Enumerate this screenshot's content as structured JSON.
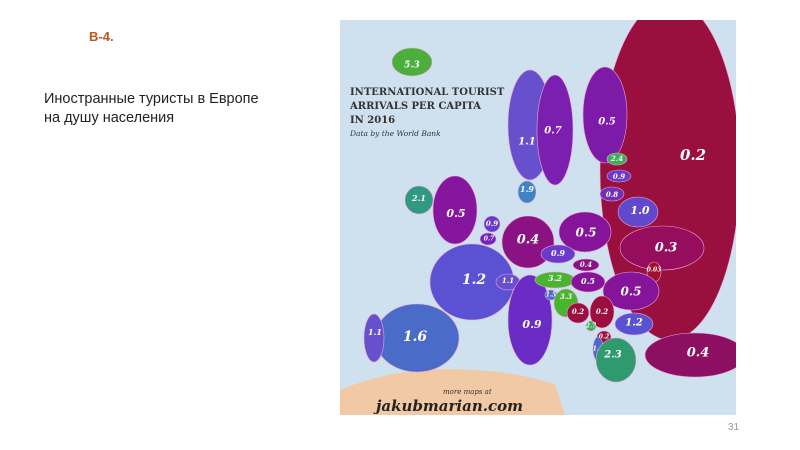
{
  "slide": {
    "code": "В-4.",
    "caption_line1": "Иностранные туристы в Европе",
    "caption_line2": "на душу населения",
    "page_number": "31"
  },
  "map": {
    "title_line1": "INTERNATIONAL TOURIST",
    "title_line2": "ARRIVALS PER CAPITA",
    "title_line3": "IN 2016",
    "source": "Data by the World Bank",
    "credit_small": "more maps at",
    "credit_site": "jakubmarian.com",
    "colors": {
      "sea": "#cfe0ee",
      "africa": "#f1c9a4"
    },
    "countries": [
      {
        "name": "Russia",
        "value": "0.2",
        "color": "#990f3d"
      },
      {
        "name": "Turkey",
        "value": "0.4",
        "color": "#8c0f62"
      },
      {
        "name": "Ukraine",
        "value": "0.3",
        "color": "#950d5c"
      },
      {
        "name": "Iceland",
        "value": "5.3",
        "color": "#4caf3c"
      },
      {
        "name": "Norway",
        "value": "1.1",
        "color": "#6650cc"
      },
      {
        "name": "Sweden",
        "value": "0.7",
        "color": "#7a1fb0"
      },
      {
        "name": "Finland",
        "value": "0.5",
        "color": "#7e1aa8"
      },
      {
        "name": "Estonia",
        "value": "2.4",
        "color": "#3dae57"
      },
      {
        "name": "Latvia",
        "value": "0.9",
        "color": "#6a3bc8"
      },
      {
        "name": "Lithuania",
        "value": "0.8",
        "color": "#7030b8"
      },
      {
        "name": "Belarus",
        "value": "1.0",
        "color": "#6248cc"
      },
      {
        "name": "Denmark",
        "value": "1.9",
        "color": "#3e84c4"
      },
      {
        "name": "Ireland",
        "value": "2.1",
        "color": "#2f9a80"
      },
      {
        "name": "United Kingdom",
        "value": "0.5",
        "color": "#86169e"
      },
      {
        "name": "Netherlands",
        "value": "0.9",
        "color": "#6a3bc8"
      },
      {
        "name": "Belgium",
        "value": "0.7",
        "color": "#7424b4"
      },
      {
        "name": "Germany",
        "value": "0.4",
        "color": "#8a1282"
      },
      {
        "name": "Poland",
        "value": "0.5",
        "color": "#86149a"
      },
      {
        "name": "Czech Republic",
        "value": "0.9",
        "color": "#6a3bc8"
      },
      {
        "name": "Slovakia",
        "value": "0.4",
        "color": "#8a1282"
      },
      {
        "name": "Moldova",
        "value": "0.03",
        "color": "#a0102c"
      },
      {
        "name": "France",
        "value": "1.2",
        "color": "#5a52d2"
      },
      {
        "name": "Spain",
        "value": "1.6",
        "color": "#4a6cc8"
      },
      {
        "name": "Portugal",
        "value": "1.1",
        "color": "#6650cc"
      },
      {
        "name": "Switzerland",
        "value": "1.1",
        "color": "#6650cc"
      },
      {
        "name": "Italy",
        "value": "0.9",
        "color": "#6a2cc4"
      },
      {
        "name": "Austria",
        "value": "3.2",
        "color": "#48b52f"
      },
      {
        "name": "Hungary",
        "value": "0.5",
        "color": "#86149a"
      },
      {
        "name": "Romania",
        "value": "0.5",
        "color": "#86149a"
      },
      {
        "name": "Slovenia",
        "value": "1.5",
        "color": "#4a6cc8"
      },
      {
        "name": "Croatia",
        "value": "3.3",
        "color": "#48b52f"
      },
      {
        "name": "Bosnia and Herzegovina",
        "value": "0.2",
        "color": "#9a0f3d"
      },
      {
        "name": "Serbia",
        "value": "0.2",
        "color": "#9a0f3d"
      },
      {
        "name": "Montenegro",
        "value": "2.7",
        "color": "#3dae57"
      },
      {
        "name": "North Macedonia",
        "value": "0.2",
        "color": "#9a0f3d"
      },
      {
        "name": "Bulgaria",
        "value": "1.2",
        "color": "#5a52d2"
      },
      {
        "name": "Albania",
        "value": "1.4",
        "color": "#4a6cc8"
      },
      {
        "name": "Greece",
        "value": "2.3",
        "color": "#2f9a6e"
      }
    ]
  }
}
